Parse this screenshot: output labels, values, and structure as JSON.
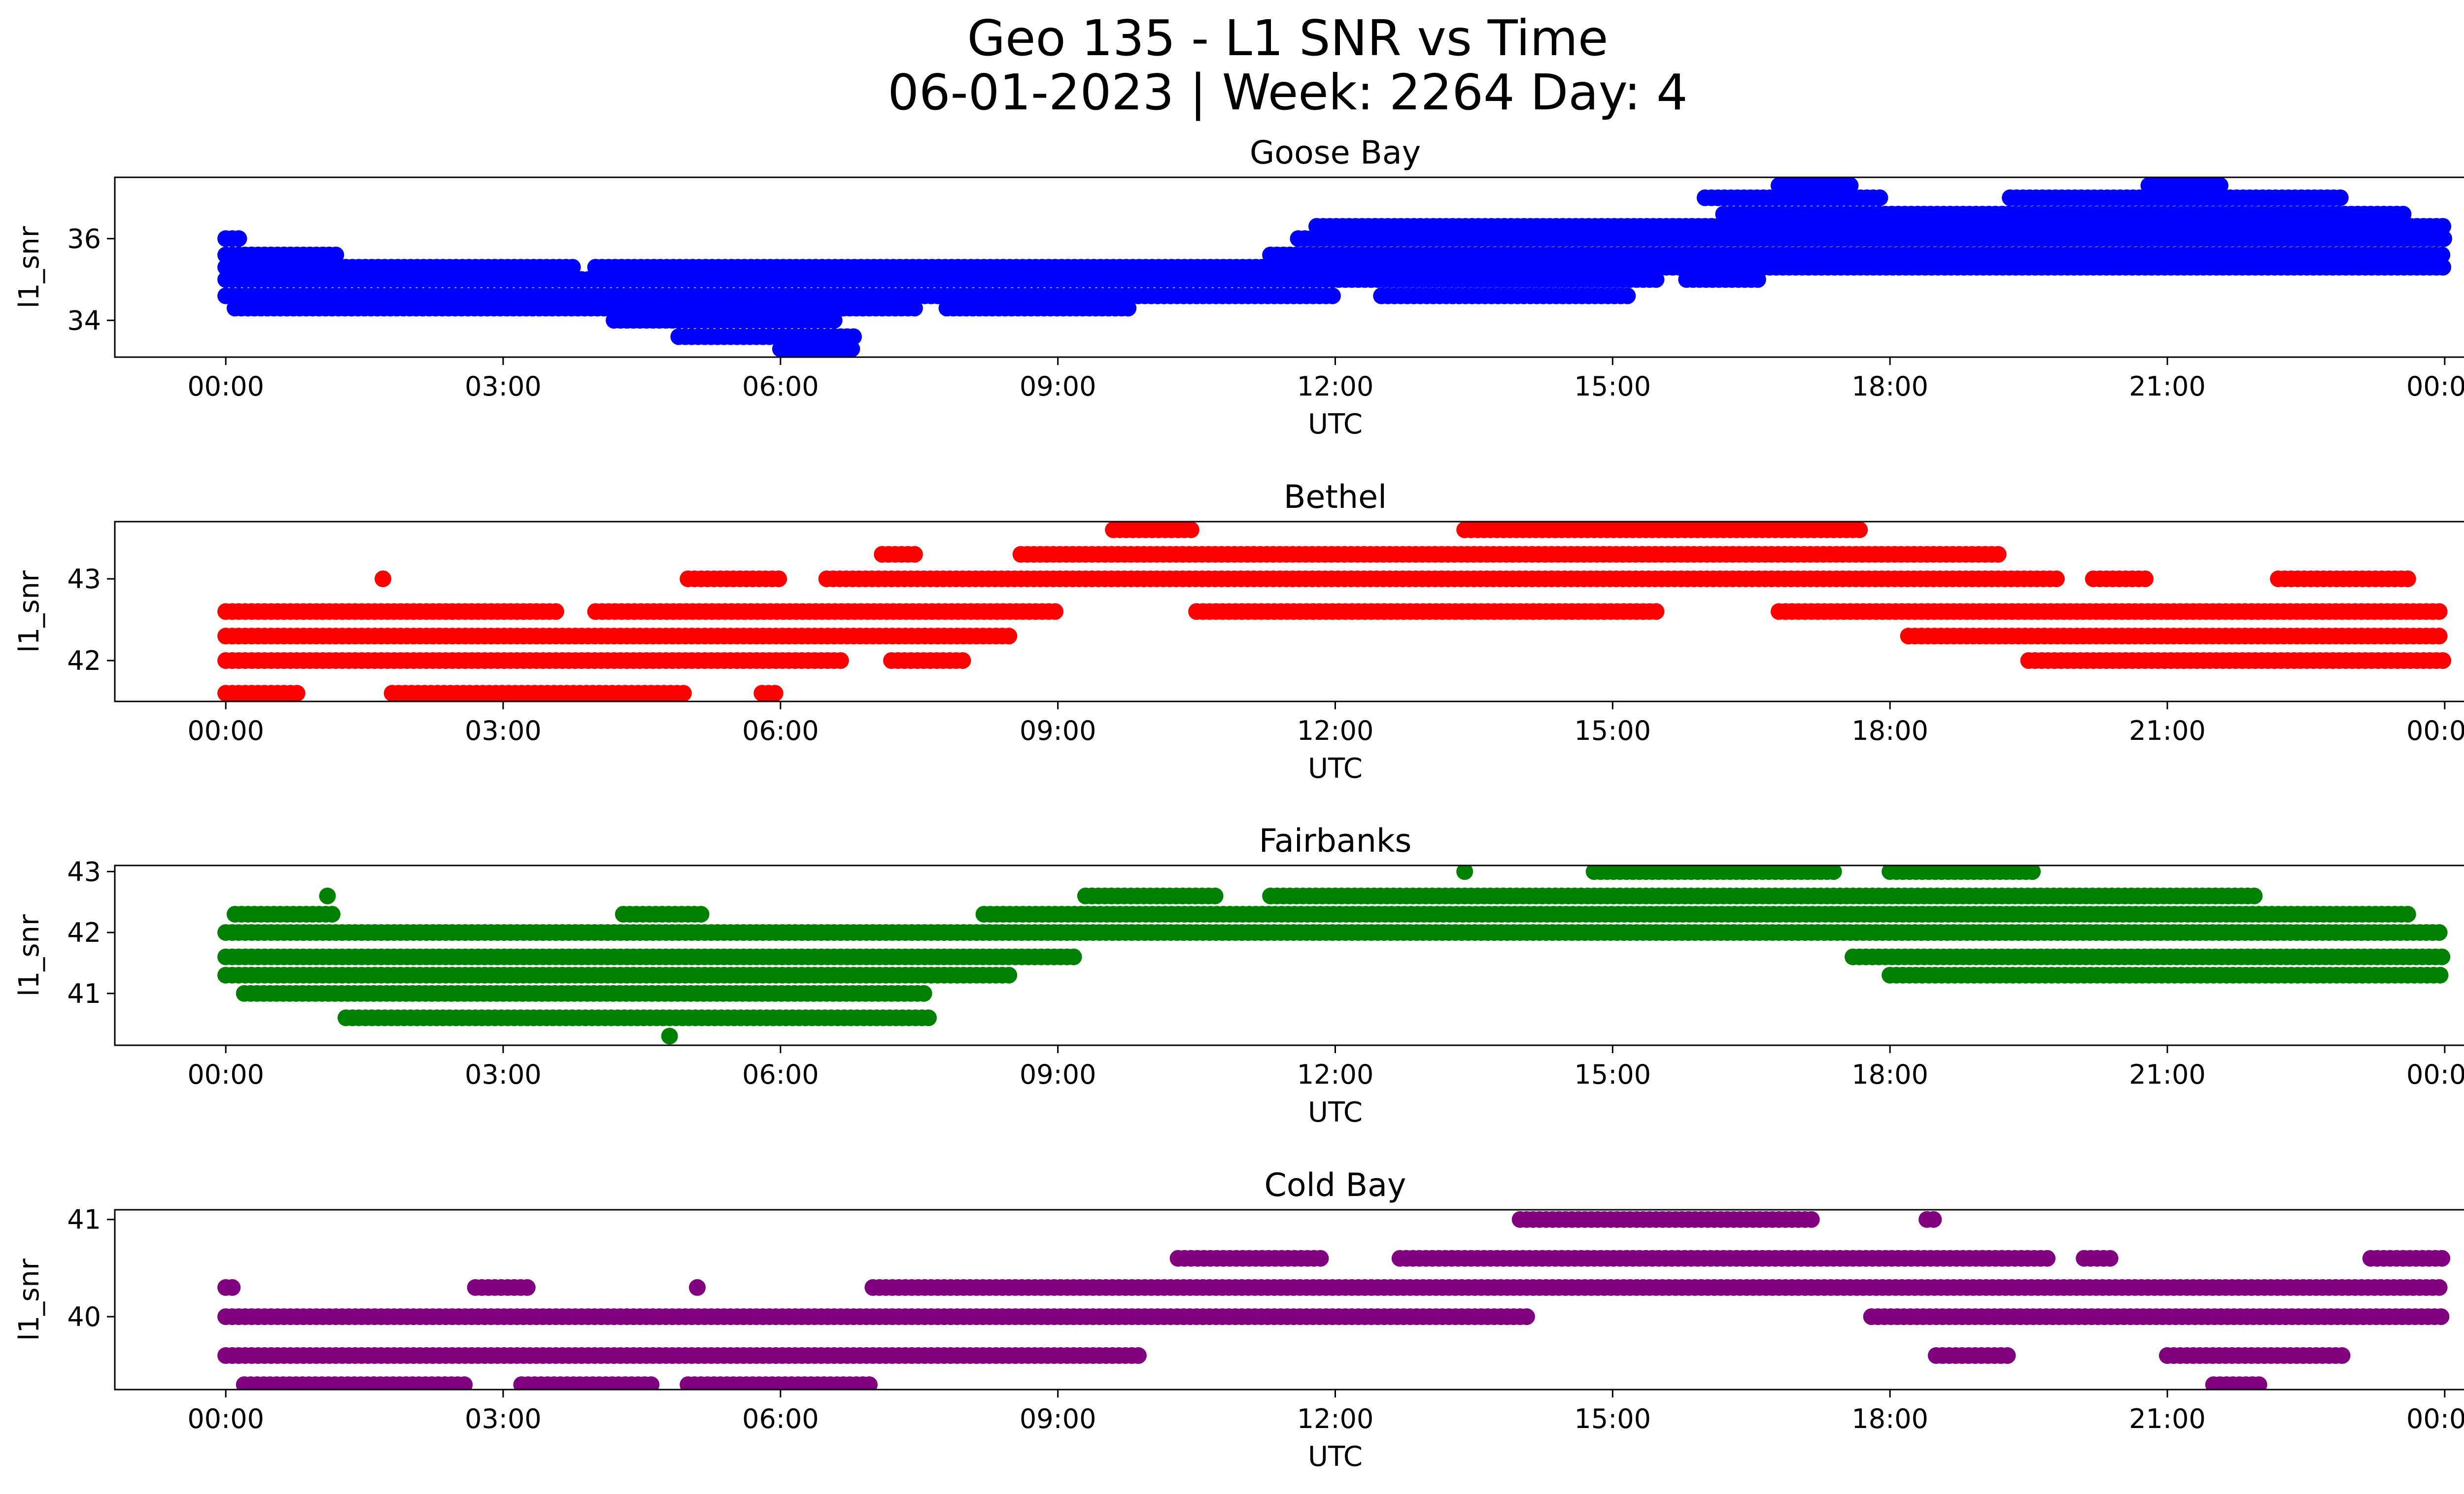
{
  "figure": {
    "title_line1": "Geo 135 - L1 SNR vs Time",
    "title_line2": "06-01-2023 | Week: 2264 Day: 4"
  },
  "chart_data": [
    {
      "type": "scatter",
      "title": "Goose Bay",
      "xlabel": "UTC",
      "ylabel": "l1_snr",
      "color": "#0000ff",
      "x_ticks": [
        "00:00",
        "03:00",
        "06:00",
        "09:00",
        "12:00",
        "15:00",
        "18:00",
        "21:00",
        "00:00"
      ],
      "y_ticks": [
        34,
        36
      ],
      "xlim_hours": [
        -1.2,
        25.2
      ],
      "ylim": [
        33.1,
        37.5
      ],
      "snr_levels": [
        33.3,
        33.6,
        34.0,
        34.3,
        34.6,
        35.0,
        35.3,
        35.6,
        36.0,
        36.3,
        36.6,
        37.0,
        37.3
      ],
      "level_ranges_hours": [
        [
          [
            6.0,
            6.8
          ]
        ],
        [
          [
            4.9,
            6.8
          ]
        ],
        [
          [
            4.2,
            6.6
          ]
        ],
        [
          [
            0.1,
            7.5
          ],
          [
            7.8,
            9.8
          ]
        ],
        [
          [
            0.0,
            12.0
          ],
          [
            12.5,
            15.2
          ]
        ],
        [
          [
            0.0,
            15.5
          ],
          [
            15.8,
            16.6
          ]
        ],
        [
          [
            0.0,
            1.2
          ],
          [
            1.3,
            3.8
          ],
          [
            4.0,
            11.8
          ],
          [
            11.8,
            24.0
          ]
        ],
        [
          [
            0.0,
            1.2
          ],
          [
            11.3,
            24.0
          ]
        ],
        [
          [
            0.0,
            0.2
          ],
          [
            11.6,
            24.0
          ]
        ],
        [
          [
            11.8,
            24.0
          ]
        ],
        [
          [
            16.2,
            23.6
          ]
        ],
        [
          [
            16.0,
            17.9
          ],
          [
            19.3,
            22.9
          ]
        ],
        [
          [
            16.8,
            17.6
          ],
          [
            20.8,
            21.6
          ]
        ]
      ]
    },
    {
      "type": "scatter",
      "title": "Bethel",
      "xlabel": "UTC",
      "ylabel": "l1_snr",
      "color": "#ff0000",
      "x_ticks": [
        "00:00",
        "03:00",
        "06:00",
        "09:00",
        "12:00",
        "15:00",
        "18:00",
        "21:00",
        "00:00"
      ],
      "y_ticks": [
        42,
        43
      ],
      "xlim_hours": [
        -1.2,
        25.2
      ],
      "ylim": [
        41.5,
        43.7
      ],
      "snr_levels": [
        41.6,
        42.0,
        42.3,
        42.6,
        43.0,
        43.3,
        43.6
      ],
      "level_ranges_hours": [
        [
          [
            0.0,
            0.8
          ],
          [
            1.8,
            5.0
          ],
          [
            5.8,
            6.0
          ]
        ],
        [
          [
            0.0,
            6.7
          ],
          [
            7.2,
            8.0
          ],
          [
            19.5,
            24.0
          ]
        ],
        [
          [
            0.0,
            8.5
          ],
          [
            18.2,
            24.0
          ]
        ],
        [
          [
            0.0,
            3.6
          ],
          [
            4.0,
            9.0
          ],
          [
            10.5,
            15.5
          ],
          [
            16.8,
            24.0
          ]
        ],
        [
          [
            1.7,
            1.7
          ],
          [
            5.0,
            6.0
          ],
          [
            6.5,
            19.8
          ],
          [
            20.2,
            20.8
          ],
          [
            22.2,
            23.6
          ]
        ],
        [
          [
            7.1,
            7.5
          ],
          [
            8.6,
            19.2
          ]
        ],
        [
          [
            9.6,
            10.5
          ],
          [
            13.4,
            17.7
          ]
        ]
      ]
    },
    {
      "type": "scatter",
      "title": "Fairbanks",
      "xlabel": "UTC",
      "ylabel": "l1_snr",
      "color": "#008000",
      "x_ticks": [
        "00:00",
        "03:00",
        "06:00",
        "09:00",
        "12:00",
        "15:00",
        "18:00",
        "21:00",
        "00:00"
      ],
      "y_ticks": [
        41,
        42,
        43
      ],
      "xlim_hours": [
        -1.2,
        25.2
      ],
      "ylim": [
        40.15,
        43.1
      ],
      "snr_levels": [
        40.3,
        40.6,
        41.0,
        41.3,
        41.6,
        42.0,
        42.3,
        42.6,
        43.0
      ],
      "level_ranges_hours": [
        [
          [
            4.8,
            4.8
          ]
        ],
        [
          [
            1.3,
            7.6
          ]
        ],
        [
          [
            0.2,
            7.6
          ]
        ],
        [
          [
            0.0,
            8.5
          ],
          [
            18.0,
            24.0
          ]
        ],
        [
          [
            0.0,
            9.2
          ],
          [
            17.6,
            24.0
          ]
        ],
        [
          [
            0.0,
            24.0
          ]
        ],
        [
          [
            0.1,
            1.2
          ],
          [
            4.3,
            5.2
          ],
          [
            8.2,
            23.6
          ]
        ],
        [
          [
            1.1,
            1.1
          ],
          [
            9.3,
            10.7
          ],
          [
            11.3,
            22.0
          ]
        ],
        [
          [
            13.4,
            13.4
          ],
          [
            14.8,
            17.4
          ],
          [
            18.0,
            19.6
          ]
        ]
      ]
    },
    {
      "type": "scatter",
      "title": "Cold Bay",
      "xlabel": "UTC",
      "ylabel": "l1_snr",
      "color": "#800080",
      "x_ticks": [
        "00:00",
        "03:00",
        "06:00",
        "09:00",
        "12:00",
        "15:00",
        "18:00",
        "21:00",
        "00:00"
      ],
      "y_ticks": [
        40,
        41
      ],
      "xlim_hours": [
        -1.2,
        25.2
      ],
      "ylim": [
        39.25,
        41.1
      ],
      "snr_levels": [
        39.3,
        39.6,
        40.0,
        40.3,
        40.6,
        41.0
      ],
      "level_ranges_hours": [
        [
          [
            0.2,
            2.6
          ],
          [
            3.2,
            4.6
          ],
          [
            5.0,
            7.0
          ],
          [
            21.5,
            22.0
          ]
        ],
        [
          [
            0.0,
            9.9
          ],
          [
            18.5,
            19.3
          ],
          [
            21.0,
            22.9
          ]
        ],
        [
          [
            0.0,
            14.1
          ],
          [
            17.8,
            24.0
          ]
        ],
        [
          [
            0.0,
            0.1
          ],
          [
            2.7,
            3.3
          ],
          [
            5.1,
            5.1
          ],
          [
            7.0,
            24.0
          ]
        ],
        [
          [
            10.3,
            11.9
          ],
          [
            12.7,
            19.7
          ],
          [
            20.1,
            20.4
          ],
          [
            23.2,
            24.0
          ]
        ],
        [
          [
            14.0,
            17.2
          ],
          [
            18.4,
            18.5
          ]
        ]
      ]
    }
  ]
}
